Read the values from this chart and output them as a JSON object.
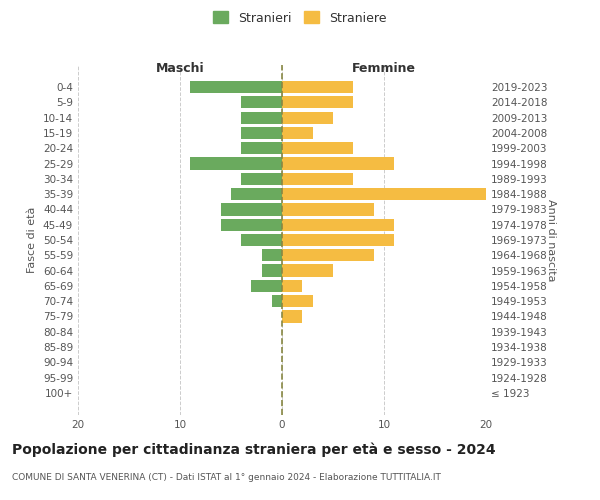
{
  "age_groups": [
    "100+",
    "95-99",
    "90-94",
    "85-89",
    "80-84",
    "75-79",
    "70-74",
    "65-69",
    "60-64",
    "55-59",
    "50-54",
    "45-49",
    "40-44",
    "35-39",
    "30-34",
    "25-29",
    "20-24",
    "15-19",
    "10-14",
    "5-9",
    "0-4"
  ],
  "birth_years": [
    "≤ 1923",
    "1924-1928",
    "1929-1933",
    "1934-1938",
    "1939-1943",
    "1944-1948",
    "1949-1953",
    "1954-1958",
    "1959-1963",
    "1964-1968",
    "1969-1973",
    "1974-1978",
    "1979-1983",
    "1984-1988",
    "1989-1993",
    "1994-1998",
    "1999-2003",
    "2004-2008",
    "2009-2013",
    "2014-2018",
    "2019-2023"
  ],
  "males": [
    0,
    0,
    0,
    0,
    0,
    0,
    1,
    3,
    2,
    2,
    4,
    6,
    6,
    5,
    4,
    9,
    4,
    4,
    4,
    4,
    9
  ],
  "females": [
    0,
    0,
    0,
    0,
    0,
    2,
    3,
    2,
    5,
    9,
    11,
    11,
    9,
    20,
    7,
    11,
    7,
    3,
    5,
    7,
    7
  ],
  "male_color": "#6aaa5e",
  "female_color": "#f5bc42",
  "bar_height": 0.8,
  "xlim": 20,
  "title": "Popolazione per cittadinanza straniera per età e sesso - 2024",
  "subtitle": "COMUNE DI SANTA VENERINA (CT) - Dati ISTAT al 1° gennaio 2024 - Elaborazione TUTTITALIA.IT",
  "ylabel_left": "Fasce di età",
  "ylabel_right": "Anni di nascita",
  "header_left": "Maschi",
  "header_right": "Femmine",
  "legend_stranieri": "Stranieri",
  "legend_straniere": "Straniere",
  "bg_color": "#ffffff",
  "grid_color": "#cccccc",
  "tick_color": "#999999",
  "title_fontsize": 10,
  "subtitle_fontsize": 6.5,
  "axis_label_fontsize": 8,
  "tick_fontsize": 7.5,
  "header_fontsize": 9
}
